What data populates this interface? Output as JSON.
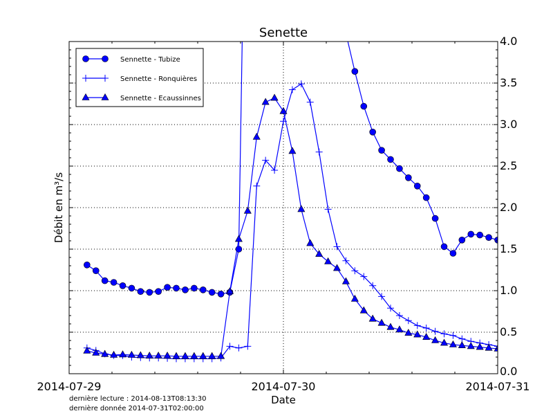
{
  "chart_data": {
    "type": "line",
    "title": "Senette",
    "xlabel": "Date",
    "ylabel": "Débit en m³/s",
    "xlim": [
      "2014-07-29T00:00",
      "2014-07-31T00:00"
    ],
    "ylim": [
      0,
      4
    ],
    "x_tick_labels": [
      "2014-07-29",
      "2014-07-30",
      "2014-07-31"
    ],
    "y_tick_labels": [
      "0.0",
      "0.5",
      "1.0",
      "1.5",
      "2.0",
      "2.5",
      "3.0",
      "3.5",
      "4.0"
    ],
    "y_axis_side": "right",
    "grid": "dotted, major ticks",
    "legend_position": "top-left",
    "color": "#0000ff",
    "x": [
      "2014-07-29T02:00",
      "2014-07-29T03:00",
      "2014-07-29T04:00",
      "2014-07-29T05:00",
      "2014-07-29T06:00",
      "2014-07-29T07:00",
      "2014-07-29T08:00",
      "2014-07-29T09:00",
      "2014-07-29T10:00",
      "2014-07-29T11:00",
      "2014-07-29T12:00",
      "2014-07-29T13:00",
      "2014-07-29T14:00",
      "2014-07-29T15:00",
      "2014-07-29T16:00",
      "2014-07-29T17:00",
      "2014-07-29T18:00",
      "2014-07-29T19:00",
      "2014-07-29T20:00",
      "2014-07-29T21:00",
      "2014-07-29T22:00",
      "2014-07-29T23:00",
      "2014-07-30T00:00",
      "2014-07-30T01:00",
      "2014-07-30T02:00",
      "2014-07-30T03:00",
      "2014-07-30T04:00",
      "2014-07-30T05:00",
      "2014-07-30T06:00",
      "2014-07-30T07:00",
      "2014-07-30T08:00",
      "2014-07-30T09:00",
      "2014-07-30T10:00",
      "2014-07-30T11:00",
      "2014-07-30T12:00",
      "2014-07-30T13:00",
      "2014-07-30T14:00",
      "2014-07-30T15:00",
      "2014-07-30T16:00",
      "2014-07-30T17:00",
      "2014-07-30T18:00",
      "2014-07-30T19:00",
      "2014-07-30T20:00",
      "2014-07-30T21:00",
      "2014-07-30T22:00",
      "2014-07-30T23:00",
      "2014-07-31T00:00"
    ],
    "series": [
      {
        "name": "Sennette - Tubize",
        "marker": "circle",
        "values": [
          1.31,
          1.24,
          1.12,
          1.1,
          1.06,
          1.03,
          0.99,
          0.98,
          0.99,
          1.04,
          1.03,
          1.01,
          1.03,
          1.01,
          0.98,
          0.96,
          0.98,
          1.5,
          8.0,
          null,
          null,
          null,
          null,
          null,
          null,
          null,
          null,
          null,
          null,
          4.1,
          3.64,
          3.22,
          2.91,
          2.69,
          2.58,
          2.47,
          2.36,
          2.26,
          2.12,
          1.87,
          1.53,
          1.45,
          1.61,
          1.68,
          1.67,
          1.64,
          1.61
        ]
      },
      {
        "name": "Sennette - Ronquières",
        "marker": "plus",
        "values": [
          0.31,
          0.28,
          0.24,
          0.22,
          0.22,
          0.2,
          0.195,
          0.19,
          0.19,
          0.185,
          0.18,
          0.18,
          0.18,
          0.18,
          0.18,
          0.19,
          0.33,
          0.31,
          0.33,
          2.26,
          2.57,
          2.45,
          3.04,
          3.42,
          3.49,
          3.27,
          2.67,
          1.98,
          1.53,
          1.36,
          1.24,
          1.17,
          1.06,
          0.93,
          0.79,
          0.7,
          0.64,
          0.58,
          0.55,
          0.51,
          0.48,
          0.46,
          0.42,
          0.39,
          0.37,
          0.35,
          0.33
        ]
      },
      {
        "name": "Sennette - Ecaussinnes",
        "marker": "triangle",
        "values": [
          0.275,
          0.25,
          0.235,
          0.225,
          0.23,
          0.225,
          0.22,
          0.215,
          0.215,
          0.215,
          0.21,
          0.21,
          0.21,
          0.21,
          0.21,
          0.21,
          0.99,
          1.62,
          1.96,
          2.85,
          3.27,
          3.32,
          3.16,
          2.68,
          1.98,
          1.57,
          1.44,
          1.35,
          1.27,
          1.11,
          0.9,
          0.76,
          0.66,
          0.61,
          0.56,
          0.53,
          0.49,
          0.47,
          0.44,
          0.4,
          0.37,
          0.35,
          0.34,
          0.33,
          0.32,
          0.31,
          0.3
        ]
      }
    ]
  },
  "footer": {
    "last_read": "dernière lecture : 2014-08-13T08:13:30",
    "last_data": "dernière donnée  2014-07-31T02:00:00"
  }
}
